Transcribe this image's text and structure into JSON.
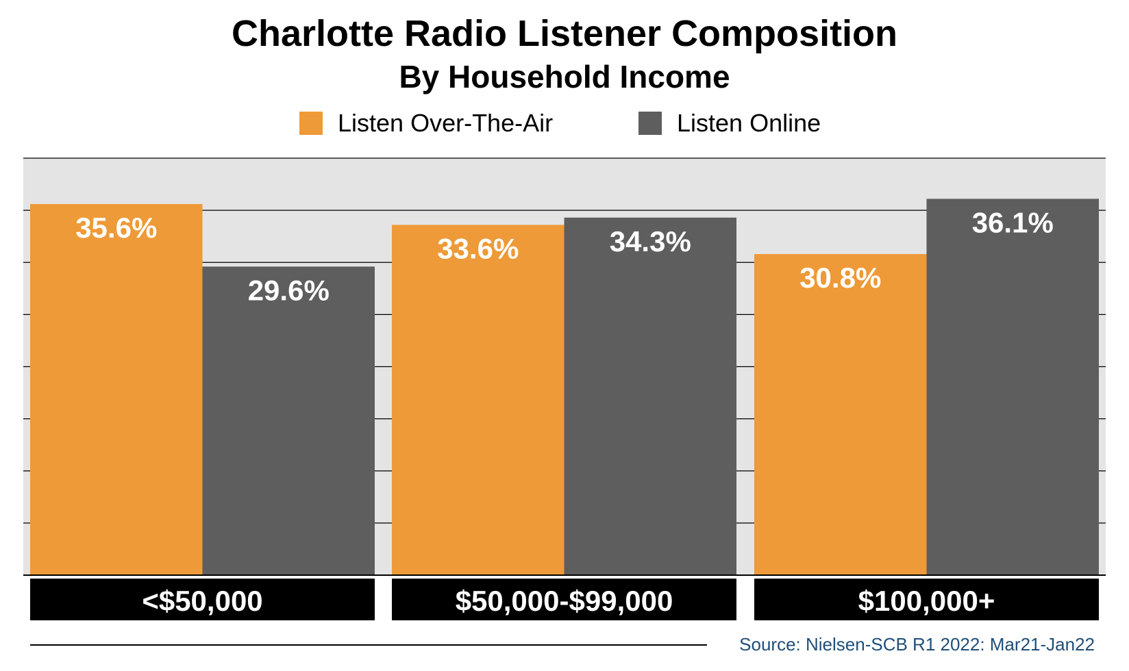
{
  "chart_data": {
    "type": "bar",
    "title": "Charlotte Radio Listener Composition",
    "subtitle": "By Household Income",
    "categories": [
      "<$50,000",
      "$50,000-$99,000",
      "$100,000+"
    ],
    "series": [
      {
        "name": "Listen Over-The-Air",
        "color": "#ee9a38",
        "values": [
          35.6,
          33.6,
          30.8
        ],
        "labels": [
          "35.6%",
          "33.6%",
          "30.8%"
        ]
      },
      {
        "name": "Listen Online",
        "color": "#5e5e5e",
        "values": [
          29.6,
          34.3,
          36.1
        ],
        "labels": [
          "29.6%",
          "34.3%",
          "36.1%"
        ]
      }
    ],
    "ylim": [
      0,
      40
    ],
    "grid": true,
    "legend_position": "top-center",
    "plot_background": "#e4e4e4",
    "category_label_background": "#000000",
    "source": "Source: Nielsen-SCB R1 2022: Mar21-Jan22"
  }
}
